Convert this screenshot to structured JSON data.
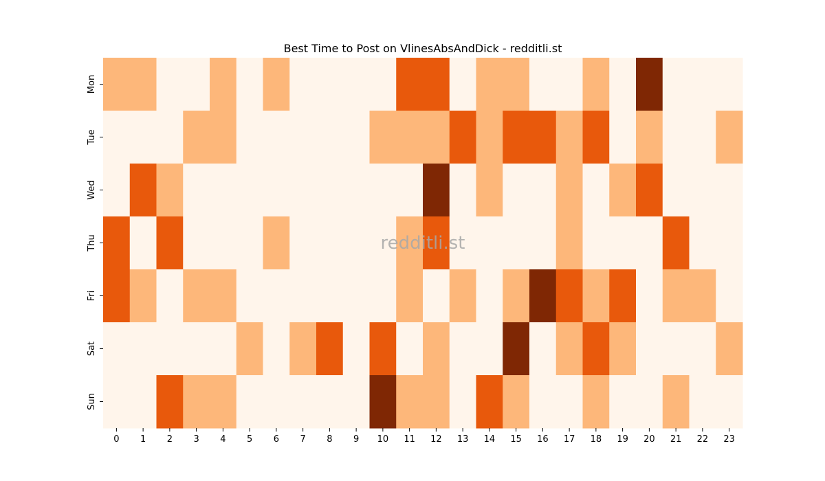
{
  "chart_data": {
    "type": "heatmap",
    "title": "Best Time to Post on VlinesAbsAndDick - redditli.st",
    "watermark": "redditli.st",
    "xlabel": "",
    "ylabel": "",
    "x_categories": [
      "0",
      "1",
      "2",
      "3",
      "4",
      "5",
      "6",
      "7",
      "8",
      "9",
      "10",
      "11",
      "12",
      "13",
      "14",
      "15",
      "16",
      "17",
      "18",
      "19",
      "20",
      "21",
      "22",
      "23"
    ],
    "y_categories": [
      "Mon",
      "Tue",
      "Wed",
      "Thu",
      "Fri",
      "Sat",
      "Sun"
    ],
    "color_scale": [
      "#fff5eb",
      "#fdb77a",
      "#e8590c",
      "#7f2704"
    ],
    "color_scale_name": "Oranges",
    "legend": "none",
    "values": [
      [
        1,
        1,
        0,
        0,
        1,
        0,
        1,
        0,
        0,
        0,
        0,
        2,
        2,
        0,
        1,
        1,
        0,
        0,
        1,
        0,
        3,
        0,
        0,
        0
      ],
      [
        0,
        0,
        0,
        1,
        1,
        0,
        0,
        0,
        0,
        0,
        1,
        1,
        1,
        2,
        1,
        2,
        2,
        1,
        2,
        0,
        1,
        0,
        0,
        1
      ],
      [
        0,
        2,
        1,
        0,
        0,
        0,
        0,
        0,
        0,
        0,
        0,
        0,
        3,
        0,
        1,
        0,
        0,
        1,
        0,
        1,
        2,
        0,
        0,
        0
      ],
      [
        2,
        0,
        2,
        0,
        0,
        0,
        1,
        0,
        0,
        0,
        0,
        1,
        2,
        0,
        0,
        0,
        0,
        1,
        0,
        0,
        0,
        2,
        0,
        0
      ],
      [
        2,
        1,
        0,
        1,
        1,
        0,
        0,
        0,
        0,
        0,
        0,
        1,
        0,
        1,
        0,
        1,
        3,
        2,
        1,
        2,
        0,
        1,
        1,
        0
      ],
      [
        0,
        0,
        0,
        0,
        0,
        1,
        0,
        1,
        2,
        0,
        2,
        0,
        1,
        0,
        0,
        3,
        0,
        1,
        2,
        1,
        0,
        0,
        0,
        1
      ],
      [
        0,
        0,
        2,
        1,
        1,
        0,
        0,
        0,
        0,
        0,
        3,
        1,
        1,
        0,
        2,
        1,
        0,
        0,
        1,
        0,
        0,
        1,
        0,
        0
      ]
    ]
  }
}
